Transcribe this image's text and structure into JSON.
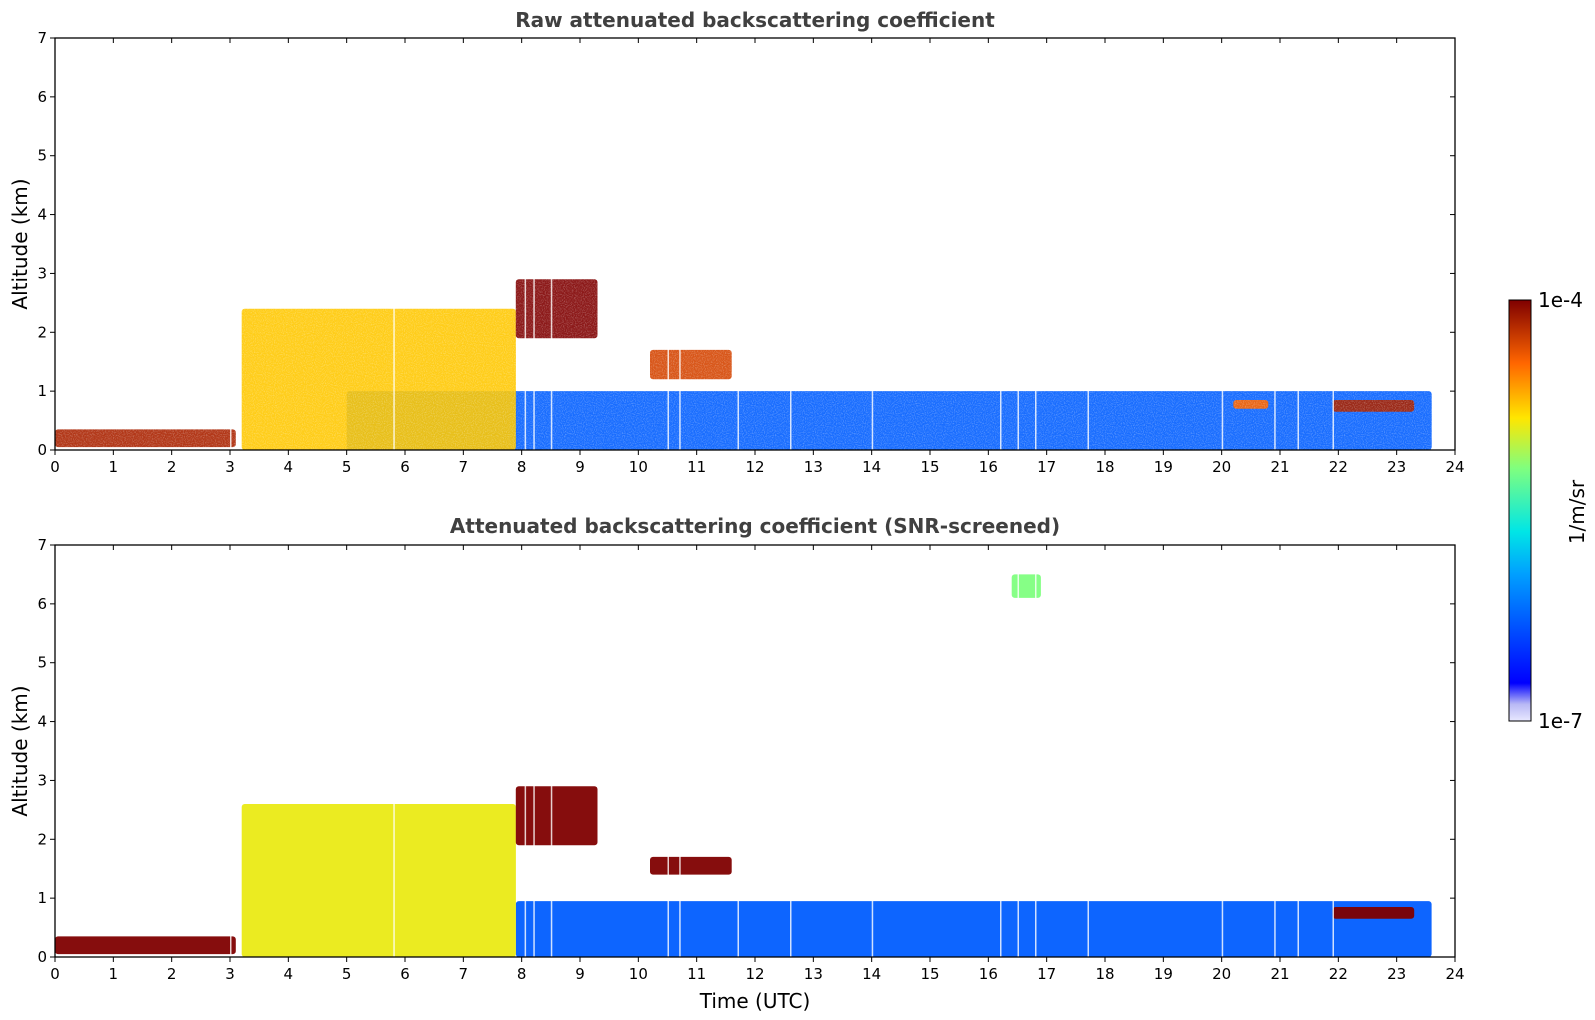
{
  "chart_data": [
    {
      "type": "heatmap",
      "title": "Raw attenuated backscattering coefficient",
      "xlabel": "",
      "ylabel": "Altitude (km)",
      "xlim": [
        0,
        24
      ],
      "ylim": [
        0,
        7
      ],
      "xticks": [
        "0",
        "1",
        "2",
        "3",
        "4",
        "5",
        "6",
        "7",
        "8",
        "9",
        "10",
        "11",
        "12",
        "13",
        "14",
        "15",
        "16",
        "17",
        "18",
        "19",
        "20",
        "21",
        "22",
        "23",
        "24"
      ],
      "yticks": [
        "0",
        "1",
        "2",
        "3",
        "4",
        "5",
        "6",
        "7"
      ],
      "data_end_time": 23.65,
      "features": [
        {
          "name": "surface layer",
          "x": [
            0,
            3.1
          ],
          "y": [
            0.05,
            0.35
          ],
          "level": 0.95
        },
        {
          "name": "boundary layer",
          "x": [
            3.2,
            7.9
          ],
          "y": [
            0,
            2.4
          ],
          "level": 0.75
        },
        {
          "name": "elevated aerosol layer",
          "x": [
            7.9,
            9.3
          ],
          "y": [
            1.9,
            2.9
          ],
          "level": 1.0
        },
        {
          "name": "thin cloud",
          "x": [
            10.2,
            11.6
          ],
          "y": [
            1.2,
            1.7
          ],
          "level": 0.9
        },
        {
          "name": "near-surface signal",
          "x": [
            5,
            23.6
          ],
          "y": [
            0,
            1.0
          ],
          "level": 0.2
        },
        {
          "name": "cloud layer",
          "x": [
            21.9,
            23.3
          ],
          "y": [
            0.65,
            0.85
          ],
          "level": 0.95
        },
        {
          "name": "cloud layer",
          "x": [
            20.2,
            20.8
          ],
          "y": [
            0.7,
            0.85
          ],
          "level": 0.85
        }
      ]
    },
    {
      "type": "heatmap",
      "title": "Attenuated backscattering coefficient (SNR-screened)",
      "xlabel": "Time (UTC)",
      "ylabel": "Altitude (km)",
      "xlim": [
        0,
        24
      ],
      "ylim": [
        0,
        7
      ],
      "xticks": [
        "0",
        "1",
        "2",
        "3",
        "4",
        "5",
        "6",
        "7",
        "8",
        "9",
        "10",
        "11",
        "12",
        "13",
        "14",
        "15",
        "16",
        "17",
        "18",
        "19",
        "20",
        "21",
        "22",
        "23",
        "24"
      ],
      "yticks": [
        "0",
        "1",
        "2",
        "3",
        "4",
        "5",
        "6",
        "7"
      ],
      "data_end_time": 23.65,
      "features": [
        {
          "name": "surface layer",
          "x": [
            0,
            3.1
          ],
          "y": [
            0.05,
            0.35
          ],
          "level": 1.0
        },
        {
          "name": "boundary layer",
          "x": [
            3.2,
            7.9
          ],
          "y": [
            0,
            2.6
          ],
          "level": 0.7
        },
        {
          "name": "elevated aerosol layer",
          "x": [
            7.9,
            9.3
          ],
          "y": [
            1.9,
            2.9
          ],
          "level": 1.0
        },
        {
          "name": "thin cloud",
          "x": [
            10.2,
            11.6
          ],
          "y": [
            1.4,
            1.7
          ],
          "level": 1.0
        },
        {
          "name": "near-surface signal",
          "x": [
            7.9,
            23.6
          ],
          "y": [
            0,
            0.95
          ],
          "level": 0.2
        },
        {
          "name": "high cloud",
          "x": [
            16.4,
            16.9
          ],
          "y": [
            6.1,
            6.5
          ],
          "level": 0.6
        },
        {
          "name": "cloud layer",
          "x": [
            21.9,
            23.3
          ],
          "y": [
            0.65,
            0.85
          ],
          "level": 1.0
        }
      ]
    }
  ],
  "colorbar": {
    "label": "1/m/sr",
    "max_label": "1e-4",
    "min_label": "1e-7"
  }
}
